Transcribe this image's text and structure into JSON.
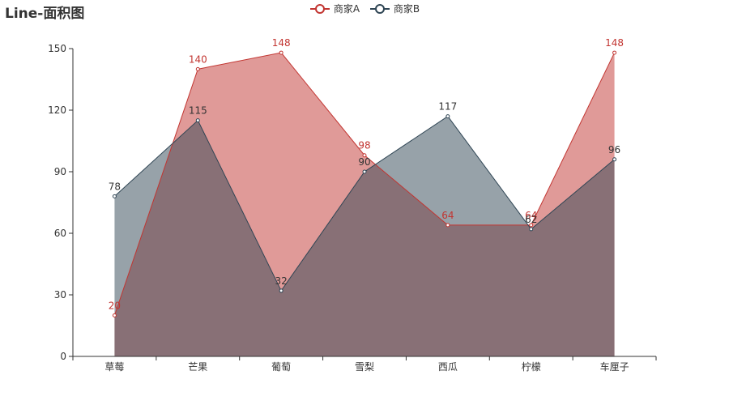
{
  "chart_data": {
    "type": "area",
    "title": "Line-面积图",
    "categories": [
      "草莓",
      "芒果",
      "葡萄",
      "雪梨",
      "西瓜",
      "柠檬",
      "车厘子"
    ],
    "series": [
      {
        "name": "商家A",
        "values": [
          20,
          140,
          148,
          98,
          64,
          64,
          148
        ],
        "color": "#c23531",
        "fill": "#c23531",
        "fill_opacity": 0.5
      },
      {
        "name": "商家B",
        "values": [
          78,
          115,
          32,
          90,
          117,
          62,
          96
        ],
        "color": "#2f4554",
        "fill": "#2f4554",
        "fill_opacity": 0.5
      }
    ],
    "ylim": [
      0,
      150
    ],
    "yticks": [
      0,
      30,
      60,
      90,
      120,
      150
    ],
    "grid": false,
    "legend_position": "top-center",
    "data_labels": true
  }
}
